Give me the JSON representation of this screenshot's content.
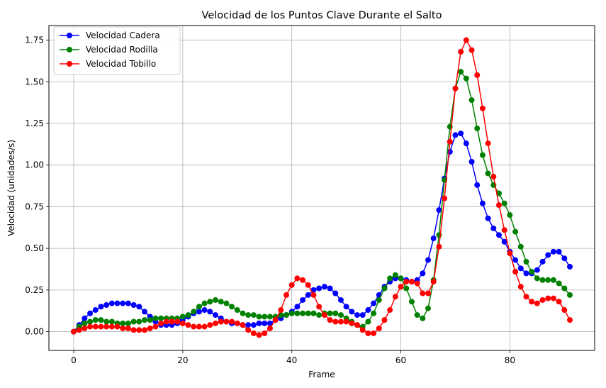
{
  "chart_data": {
    "type": "line",
    "title": "Velocidad de los Puntos Clave Durante el Salto",
    "xlabel": "Frame",
    "ylabel": "Velocidad (unidades/s)",
    "xlim": [
      -4.55,
      95.55
    ],
    "ylim": [
      -0.1125,
      1.8375
    ],
    "xticks": [
      0,
      20,
      40,
      60,
      80
    ],
    "yticks": [
      0.0,
      0.25,
      0.5,
      0.75,
      1.0,
      1.25,
      1.5,
      1.75
    ],
    "ytick_labels": [
      "0.00",
      "0.25",
      "0.50",
      "0.75",
      "1.00",
      "1.25",
      "1.50",
      "1.75"
    ],
    "grid": true,
    "legend_position": "top-left",
    "x": [
      0,
      1,
      2,
      3,
      4,
      5,
      6,
      7,
      8,
      9,
      10,
      11,
      12,
      13,
      14,
      15,
      16,
      17,
      18,
      19,
      20,
      21,
      22,
      23,
      24,
      25,
      26,
      27,
      28,
      29,
      30,
      31,
      32,
      33,
      34,
      35,
      36,
      37,
      38,
      39,
      40,
      41,
      42,
      43,
      44,
      45,
      46,
      47,
      48,
      49,
      50,
      51,
      52,
      53,
      54,
      55,
      56,
      57,
      58,
      59,
      60,
      61,
      62,
      63,
      64,
      65,
      66,
      67,
      68,
      69,
      70,
      71,
      72,
      73,
      74,
      75,
      76,
      77,
      78,
      79,
      80,
      81,
      82,
      83,
      84,
      85,
      86,
      87,
      88,
      89,
      90,
      91
    ],
    "series": [
      {
        "name": "Velocidad Cadera",
        "color": "#0000ff",
        "values": [
          0.0,
          0.04,
          0.08,
          0.11,
          0.13,
          0.15,
          0.16,
          0.17,
          0.17,
          0.17,
          0.17,
          0.16,
          0.15,
          0.12,
          0.09,
          0.06,
          0.04,
          0.04,
          0.04,
          0.05,
          0.07,
          0.09,
          0.11,
          0.12,
          0.13,
          0.12,
          0.1,
          0.08,
          0.06,
          0.05,
          0.05,
          0.04,
          0.04,
          0.04,
          0.05,
          0.05,
          0.05,
          0.07,
          0.08,
          0.1,
          0.12,
          0.15,
          0.19,
          0.22,
          0.25,
          0.26,
          0.27,
          0.26,
          0.23,
          0.19,
          0.15,
          0.12,
          0.1,
          0.1,
          0.13,
          0.17,
          0.22,
          0.27,
          0.3,
          0.32,
          0.32,
          0.31,
          0.3,
          0.31,
          0.35,
          0.43,
          0.56,
          0.73,
          0.92,
          1.08,
          1.18,
          1.19,
          1.13,
          1.02,
          0.88,
          0.77,
          0.68,
          0.62,
          0.58,
          0.54,
          0.48,
          0.43,
          0.38,
          0.35,
          0.35,
          0.37,
          0.42,
          0.46,
          0.48,
          0.48,
          0.44,
          0.39
        ]
      },
      {
        "name": "Velocidad Rodilla",
        "color": "#008000",
        "values": [
          0.0,
          0.03,
          0.05,
          0.06,
          0.07,
          0.07,
          0.06,
          0.06,
          0.05,
          0.05,
          0.05,
          0.06,
          0.06,
          0.07,
          0.07,
          0.08,
          0.08,
          0.08,
          0.08,
          0.08,
          0.09,
          0.1,
          0.12,
          0.15,
          0.17,
          0.18,
          0.19,
          0.18,
          0.17,
          0.15,
          0.13,
          0.11,
          0.1,
          0.1,
          0.09,
          0.09,
          0.09,
          0.09,
          0.1,
          0.1,
          0.11,
          0.11,
          0.11,
          0.11,
          0.11,
          0.1,
          0.11,
          0.11,
          0.11,
          0.1,
          0.08,
          0.06,
          0.04,
          0.03,
          0.06,
          0.11,
          0.19,
          0.26,
          0.32,
          0.34,
          0.32,
          0.26,
          0.18,
          0.1,
          0.08,
          0.14,
          0.31,
          0.58,
          0.91,
          1.23,
          1.46,
          1.56,
          1.52,
          1.39,
          1.22,
          1.06,
          0.95,
          0.88,
          0.83,
          0.77,
          0.7,
          0.6,
          0.51,
          0.42,
          0.36,
          0.32,
          0.31,
          0.31,
          0.31,
          0.29,
          0.26,
          0.22
        ]
      },
      {
        "name": "Velocidad Tobillo",
        "color": "#ff0000",
        "values": [
          0.0,
          0.01,
          0.02,
          0.03,
          0.03,
          0.03,
          0.03,
          0.03,
          0.03,
          0.02,
          0.02,
          0.01,
          0.01,
          0.01,
          0.02,
          0.03,
          0.05,
          0.06,
          0.06,
          0.06,
          0.05,
          0.04,
          0.03,
          0.03,
          0.03,
          0.04,
          0.05,
          0.06,
          0.06,
          0.06,
          0.05,
          0.04,
          0.01,
          -0.01,
          -0.02,
          -0.01,
          0.02,
          0.07,
          0.13,
          0.22,
          0.28,
          0.32,
          0.31,
          0.28,
          0.22,
          0.15,
          0.1,
          0.07,
          0.06,
          0.06,
          0.06,
          0.05,
          0.04,
          0.01,
          -0.01,
          -0.01,
          0.02,
          0.07,
          0.13,
          0.21,
          0.27,
          0.3,
          0.3,
          0.29,
          0.23,
          0.23,
          0.3,
          0.51,
          0.8,
          1.14,
          1.46,
          1.68,
          1.75,
          1.69,
          1.54,
          1.34,
          1.13,
          0.93,
          0.76,
          0.61,
          0.47,
          0.36,
          0.27,
          0.21,
          0.18,
          0.17,
          0.19,
          0.2,
          0.2,
          0.18,
          0.13,
          0.07
        ]
      }
    ]
  }
}
